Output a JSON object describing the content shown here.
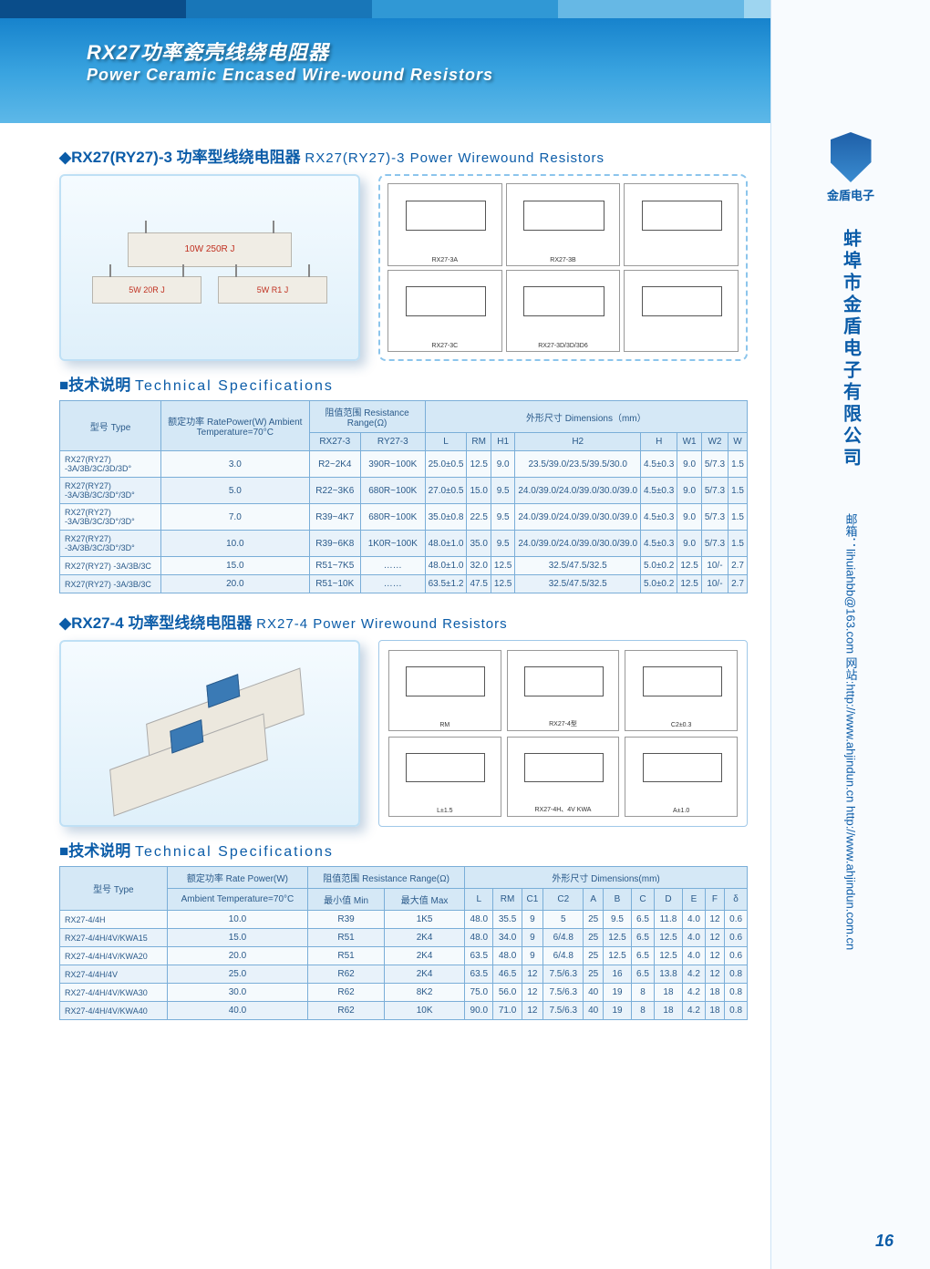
{
  "header": {
    "title_cn": "RX27功率瓷壳线绕电阻器",
    "title_en": "Power Ceramic Encased Wire-wound Resistors",
    "stripe_colors": [
      "#0a4d8a",
      "#1876b8",
      "#3098d5",
      "#66b8e5",
      "#9ed5f0"
    ]
  },
  "sidebar": {
    "company_short": "金盾电子",
    "company_full": "蚌埠市金盾电子有限公司",
    "contact": "邮箱：lihuiahbb@163.com  网站:http://www.ahjindun.cn  http://www.ahjindun.com.cn",
    "page_number": "16"
  },
  "section1": {
    "title_cn": "◆RX27(RY27)-3 功率型线绕电阻器",
    "title_en": "RX27(RY27)-3 Power Wirewound Resistors",
    "photo_labels": {
      "top": "10W 250R J",
      "bl": "5W 20R J",
      "br": "5W R1 J"
    },
    "diag_labels": [
      "RX27-3A",
      "RX27-3B",
      "",
      "RX27-3C",
      "RX27-3D/3D/3D6",
      ""
    ],
    "spec_label_cn": "■技术说明",
    "spec_label_en": "Technical Specifications"
  },
  "table1": {
    "headers": {
      "type": "型号\nType",
      "power": "额定功率\nRatePower(W)\nAmbient\nTemperature=70°C",
      "range": "阻值范围\nResistance Range(Ω)",
      "rx27": "RX27-3",
      "ry27": "RY27-3",
      "dims": "外形尺寸\nDimensions（mm）",
      "L": "L",
      "RM": "RM",
      "H1": "H1",
      "H2": "H2",
      "H": "H",
      "W1": "W1",
      "W2": "W2",
      "W": "W"
    },
    "rows": [
      {
        "type": "RX27(RY27)\n-3A/3B/3C/3D/3D°",
        "power": "3.0",
        "rx": "R2~2K4",
        "ry": "390R~100K",
        "L": "25.0±0.5",
        "RM": "12.5",
        "H1": "9.0",
        "H2": "23.5/39.0/23.5/39.5/30.0",
        "H": "4.5±0.3",
        "W1": "9.0",
        "W2": "5/7.3",
        "W": "1.5"
      },
      {
        "type": "RX27(RY27)\n-3A/3B/3C/3D°/3D°",
        "power": "5.0",
        "rx": "R22~3K6",
        "ry": "680R~100K",
        "L": "27.0±0.5",
        "RM": "15.0",
        "H1": "9.5",
        "H2": "24.0/39.0/24.0/39.0/30.0/39.0",
        "H": "4.5±0.3",
        "W1": "9.0",
        "W2": "5/7.3",
        "W": "1.5"
      },
      {
        "type": "RX27(RY27)\n-3A/3B/3C/3D°/3D°",
        "power": "7.0",
        "rx": "R39~4K7",
        "ry": "680R~100K",
        "L": "35.0±0.8",
        "RM": "22.5",
        "H1": "9.5",
        "H2": "24.0/39.0/24.0/39.0/30.0/39.0",
        "H": "4.5±0.3",
        "W1": "9.0",
        "W2": "5/7.3",
        "W": "1.5"
      },
      {
        "type": "RX27(RY27)\n-3A/3B/3C/3D°/3D°",
        "power": "10.0",
        "rx": "R39~6K8",
        "ry": "1K0R~100K",
        "L": "48.0±1.0",
        "RM": "35.0",
        "H1": "9.5",
        "H2": "24.0/39.0/24.0/39.0/30.0/39.0",
        "H": "4.5±0.3",
        "W1": "9.0",
        "W2": "5/7.3",
        "W": "1.5"
      },
      {
        "type": "RX27(RY27)\n-3A/3B/3C",
        "power": "15.0",
        "rx": "R51~7K5",
        "ry": "……",
        "L": "48.0±1.0",
        "RM": "32.0",
        "H1": "12.5",
        "H2": "32.5/47.5/32.5",
        "H": "5.0±0.2",
        "W1": "12.5",
        "W2": "10/-",
        "W": "2.7"
      },
      {
        "type": "RX27(RY27)\n-3A/3B/3C",
        "power": "20.0",
        "rx": "R51~10K",
        "ry": "……",
        "L": "63.5±1.2",
        "RM": "47.5",
        "H1": "12.5",
        "H2": "32.5/47.5/32.5",
        "H": "5.0±0.2",
        "W1": "12.5",
        "W2": "10/-",
        "W": "2.7"
      }
    ]
  },
  "section2": {
    "title_cn": "◆RX27-4 功率型线绕电阻器",
    "title_en": "RX27-4 Power Wirewound Resistors",
    "diag_labels": [
      "RM",
      "RX27-4型",
      "C2±0.3",
      "L±1.5",
      "RX27-4H、4V\nKWA",
      "A±1.0"
    ],
    "spec_label_cn": "■技术说明",
    "spec_label_en": "Technical Specifications"
  },
  "table2": {
    "headers": {
      "type": "型号\nType",
      "power": "额定功率\nRate Power(W)",
      "power2": "Ambient Temperature=70°C",
      "range": "阻值范围\nResistance Range(Ω)",
      "min": "最小值 Min",
      "max": "最大值 Max",
      "dims": "外形尺寸 Dimensions(mm)",
      "L": "L",
      "RM": "RM",
      "C1": "C1",
      "C2": "C2",
      "A": "A",
      "B": "B",
      "C": "C",
      "D": "D",
      "E": "E",
      "F": "F",
      "δ": "δ"
    },
    "rows": [
      {
        "type": "RX27-4/4H",
        "power": "10.0",
        "min": "R39",
        "max": "1K5",
        "L": "48.0",
        "RM": "35.5",
        "C1": "9",
        "C2": "5",
        "A": "25",
        "B": "9.5",
        "C": "6.5",
        "D": "11.8",
        "E": "4.0",
        "F": "12",
        "d": "0.6"
      },
      {
        "type": "RX27-4/4H/4V/KWA15",
        "power": "15.0",
        "min": "R51",
        "max": "2K4",
        "L": "48.0",
        "RM": "34.0",
        "C1": "9",
        "C2": "6/4.8",
        "A": "25",
        "B": "12.5",
        "C": "6.5",
        "D": "12.5",
        "E": "4.0",
        "F": "12",
        "d": "0.6"
      },
      {
        "type": "RX27-4/4H/4V/KWA20",
        "power": "20.0",
        "min": "R51",
        "max": "2K4",
        "L": "63.5",
        "RM": "48.0",
        "C1": "9",
        "C2": "6/4.8",
        "A": "25",
        "B": "12.5",
        "C": "6.5",
        "D": "12.5",
        "E": "4.0",
        "F": "12",
        "d": "0.6"
      },
      {
        "type": "RX27-4/4H/4V",
        "power": "25.0",
        "min": "R62",
        "max": "2K4",
        "L": "63.5",
        "RM": "46.5",
        "C1": "12",
        "C2": "7.5/6.3",
        "A": "25",
        "B": "16",
        "C": "6.5",
        "D": "13.8",
        "E": "4.2",
        "F": "12",
        "d": "0.8"
      },
      {
        "type": "RX27-4/4H/4V/KWA30",
        "power": "30.0",
        "min": "R62",
        "max": "8K2",
        "L": "75.0",
        "RM": "56.0",
        "C1": "12",
        "C2": "7.5/6.3",
        "A": "40",
        "B": "19",
        "C": "8",
        "D": "18",
        "E": "4.2",
        "F": "18",
        "d": "0.8"
      },
      {
        "type": "RX27-4/4H/4V/KWA40",
        "power": "40.0",
        "min": "R62",
        "max": "10K",
        "L": "90.0",
        "RM": "71.0",
        "C1": "12",
        "C2": "7.5/6.3",
        "A": "40",
        "B": "19",
        "C": "8",
        "D": "18",
        "E": "4.2",
        "F": "18",
        "d": "0.8"
      }
    ]
  }
}
